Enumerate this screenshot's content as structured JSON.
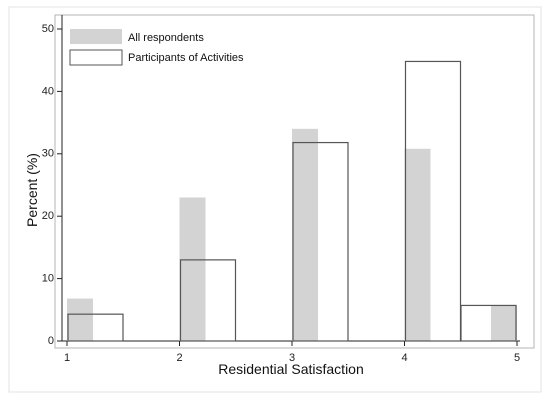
{
  "chart_data": {
    "type": "bar",
    "xlabel": "Residential Satisfaction",
    "ylabel": "Percent (%)",
    "xlim": [
      1,
      5
    ],
    "ylim": [
      0,
      50
    ],
    "x_ticks": [
      "1",
      "2",
      "3",
      "4",
      "5"
    ],
    "y_ticks": [
      "0",
      "10",
      "20",
      "30",
      "40",
      "50"
    ],
    "grid": false,
    "legend_position": "top-left",
    "categories": [
      "1",
      "2",
      "3",
      "4",
      "5"
    ],
    "series": [
      {
        "name": "All respondents",
        "values": [
          6.8,
          23.0,
          34.0,
          30.8,
          5.7
        ],
        "style": "filled",
        "color": "#d3d3d3"
      },
      {
        "name": "Participants of Activities",
        "values": [
          4.3,
          13.0,
          31.8,
          44.8,
          5.7
        ],
        "style": "outline",
        "color": "#555555"
      }
    ]
  }
}
